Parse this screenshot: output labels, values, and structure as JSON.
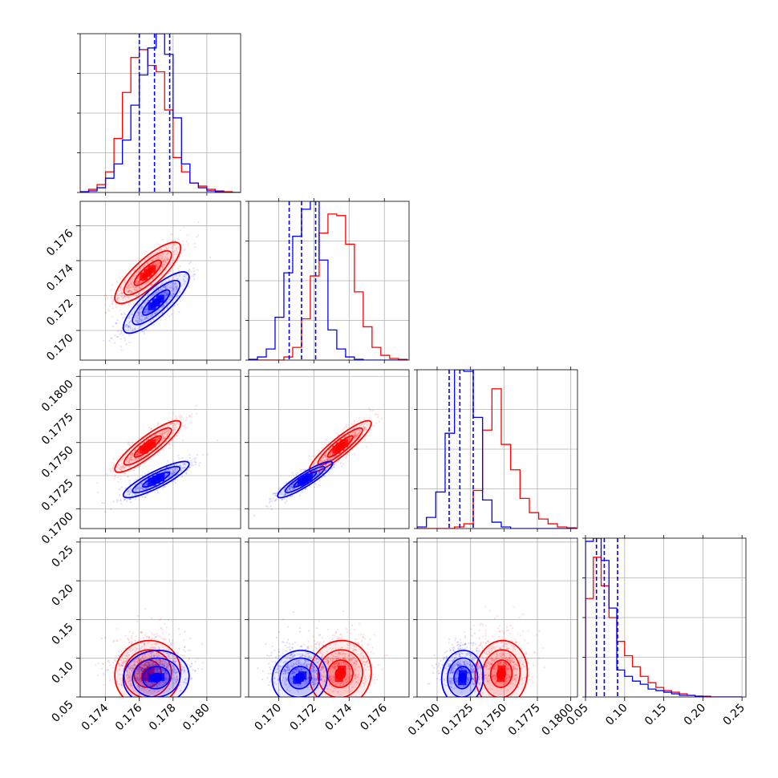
{
  "chart_data": {
    "type": "corner",
    "grid": true,
    "n_params": 4,
    "series": [
      {
        "color": "#0000ff"
      },
      {
        "color": "#ff0000"
      }
    ],
    "colors": {
      "series_a": "#0000ff",
      "series_b": "#ff0000",
      "grid": "#b0b0b0"
    },
    "axes": [
      {
        "range": [
          0.1725,
          0.182
        ],
        "ticks": [
          "0.174",
          "0.176",
          "0.178",
          "0.180"
        ],
        "tick_values": [
          0.174,
          0.176,
          0.178,
          0.18
        ]
      },
      {
        "range": [
          0.1683,
          0.1774
        ],
        "ticks": [
          "0.170",
          "0.172",
          "0.174",
          "0.176"
        ],
        "tick_values": [
          0.17,
          0.172,
          0.174,
          0.176
        ]
      },
      {
        "range": [
          0.1685,
          0.1805
        ],
        "ticks": [
          "0.1700",
          "0.1725",
          "0.1750",
          "0.1775",
          "0.1800"
        ],
        "tick_values": [
          0.17,
          0.1725,
          0.175,
          0.1775,
          0.18
        ]
      },
      {
        "range": [
          0.05,
          0.255
        ],
        "ticks": [
          "0.05",
          "0.10",
          "0.15",
          "0.20",
          "0.25"
        ],
        "tick_values": [
          0.05,
          0.1,
          0.15,
          0.2,
          0.25
        ]
      }
    ],
    "marginals": [
      {
        "bin_edges": [
          0.1725,
          0.173,
          0.1735,
          0.174,
          0.1745,
          0.175,
          0.1755,
          0.176,
          0.1765,
          0.177,
          0.1775,
          0.178,
          0.1785,
          0.179,
          0.1795,
          0.18,
          0.1805,
          0.181,
          0.1815,
          0.182
        ],
        "counts_a": [
          0.005,
          0.01,
          0.03,
          0.09,
          0.18,
          0.33,
          0.55,
          0.74,
          0.91,
          1.0,
          0.87,
          0.47,
          0.18,
          0.06,
          0.03,
          0.01,
          0.005,
          0.002,
          0.0
        ],
        "counts_b": [
          0.005,
          0.02,
          0.05,
          0.13,
          0.34,
          0.63,
          0.85,
          0.9,
          0.8,
          0.76,
          0.52,
          0.22,
          0.13,
          0.06,
          0.04,
          0.02,
          0.01,
          0.005,
          0.0
        ],
        "quantiles": [
          0.176,
          0.1769,
          0.1778
        ]
      },
      {
        "bin_edges": [
          0.1683,
          0.1688,
          0.1693,
          0.1698,
          0.1703,
          0.1708,
          0.1713,
          0.1718,
          0.1723,
          0.1728,
          0.1733,
          0.1738,
          0.1743,
          0.1748,
          0.1753,
          0.1758,
          0.1763,
          0.1768,
          0.1773
        ],
        "counts_a": [
          0.005,
          0.02,
          0.07,
          0.27,
          0.55,
          0.78,
          0.95,
          1.0,
          0.63,
          0.19,
          0.07,
          0.02,
          0.005,
          0.0,
          0.0,
          0.0,
          0.0,
          0.0
        ],
        "counts_b": [
          0.0,
          0.0,
          0.0,
          0.0,
          0.02,
          0.08,
          0.26,
          0.53,
          0.8,
          0.92,
          0.91,
          0.73,
          0.43,
          0.21,
          0.08,
          0.03,
          0.01,
          0.005
        ],
        "quantiles": [
          0.1706,
          0.1713,
          0.1721
        ]
      },
      {
        "bin_edges": [
          0.1685,
          0.1692,
          0.1699,
          0.1706,
          0.1713,
          0.172,
          0.1727,
          0.1734,
          0.1741,
          0.1748,
          0.1755,
          0.1762,
          0.1769,
          0.1776,
          0.1783,
          0.179,
          0.1797,
          0.1804
        ],
        "counts_a": [
          0.01,
          0.07,
          0.23,
          0.6,
          1.0,
          0.99,
          0.7,
          0.18,
          0.04,
          0.01,
          0.0,
          0.0,
          0.0,
          0.0,
          0.0,
          0.0,
          0.0
        ],
        "counts_b": [
          0.0,
          0.0,
          0.0,
          0.0,
          0.01,
          0.03,
          0.24,
          0.62,
          0.88,
          0.53,
          0.37,
          0.19,
          0.1,
          0.06,
          0.03,
          0.01,
          0.005
        ],
        "quantiles": [
          0.1709,
          0.1717,
          0.1727
        ]
      },
      {
        "bin_edges": [
          0.05,
          0.06,
          0.07,
          0.08,
          0.09,
          0.1,
          0.11,
          0.12,
          0.13,
          0.14,
          0.15,
          0.16,
          0.17,
          0.18,
          0.19,
          0.2,
          0.21,
          0.22,
          0.23,
          0.24,
          0.25
        ],
        "counts_a": [
          0.98,
          1.0,
          0.86,
          0.56,
          0.17,
          0.13,
          0.1,
          0.08,
          0.05,
          0.04,
          0.03,
          0.02,
          0.01,
          0.01,
          0.005,
          0.0,
          0.0,
          0.0,
          0.0,
          0.0
        ],
        "counts_b": [
          0.62,
          0.88,
          0.7,
          0.5,
          0.35,
          0.26,
          0.19,
          0.13,
          0.09,
          0.06,
          0.04,
          0.03,
          0.02,
          0.01,
          0.005,
          0.005,
          0.0,
          0.0,
          0.0,
          0.0
        ],
        "quantiles": [
          0.064,
          0.074,
          0.091
        ]
      }
    ],
    "pairs": [
      {
        "row": 1,
        "col": 0,
        "a": {
          "mean": [
            0.177,
            0.1716
          ],
          "std": [
            0.001,
            0.0009
          ],
          "rho": 0.82
        },
        "b": {
          "mean": [
            0.1765,
            0.1733
          ],
          "std": [
            0.001,
            0.0009
          ],
          "rho": 0.82
        }
      },
      {
        "row": 2,
        "col": 0,
        "a": {
          "mean": [
            0.177,
            0.1722
          ],
          "std": [
            0.001,
            0.0007
          ],
          "rho": 0.86
        },
        "b": {
          "mean": [
            0.1765,
            0.1747
          ],
          "std": [
            0.001,
            0.001
          ],
          "rho": 0.88
        }
      },
      {
        "row": 2,
        "col": 1,
        "a": {
          "mean": [
            0.1715,
            0.1722
          ],
          "std": [
            0.0008,
            0.0007
          ],
          "rho": 0.9
        },
        "b": {
          "mean": [
            0.1735,
            0.1747
          ],
          "std": [
            0.0009,
            0.001
          ],
          "rho": 0.9
        }
      },
      {
        "row": 3,
        "col": 0,
        "a": {
          "mean": [
            0.177,
            0.075
          ],
          "std": [
            0.001,
            0.018
          ],
          "rho": 0.05
        },
        "b": {
          "mean": [
            0.1765,
            0.08
          ],
          "std": [
            0.001,
            0.022
          ],
          "rho": 0.05
        }
      },
      {
        "row": 3,
        "col": 1,
        "a": {
          "mean": [
            0.1712,
            0.075
          ],
          "std": [
            0.0008,
            0.018
          ],
          "rho": 0.05
        },
        "b": {
          "mean": [
            0.1735,
            0.08
          ],
          "std": [
            0.0009,
            0.022
          ],
          "rho": 0.05
        }
      },
      {
        "row": 3,
        "col": 2,
        "a": {
          "mean": [
            0.1719,
            0.075
          ],
          "std": [
            0.0008,
            0.018
          ],
          "rho": 0.05
        },
        "b": {
          "mean": [
            0.1748,
            0.08
          ],
          "std": [
            0.001,
            0.022
          ],
          "rho": 0.05
        }
      }
    ]
  }
}
